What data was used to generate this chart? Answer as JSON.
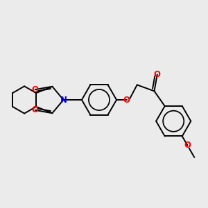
{
  "bg_color": "#ebebeb",
  "bond_color": "#000000",
  "N_color": "#0000ff",
  "O_color": "#ff0000",
  "lw": 1.4,
  "figsize": [
    3.0,
    3.0
  ],
  "dpi": 100,
  "xlim": [
    0,
    10
  ],
  "ylim": [
    0,
    10
  ]
}
